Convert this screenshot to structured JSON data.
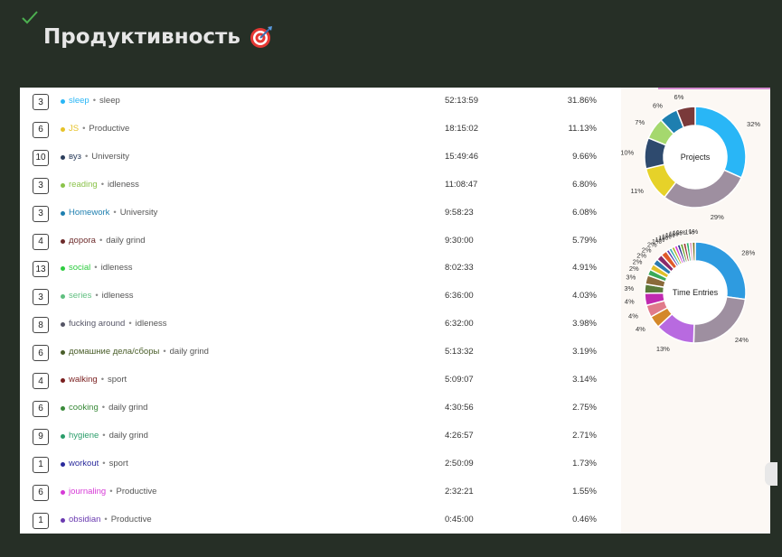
{
  "page": {
    "title": "Продуктивность",
    "title_icon": "dart-target-icon"
  },
  "colors": {
    "background": "#262f26",
    "check": "#4caf50"
  },
  "rows": [
    {
      "count": "3",
      "project": "sleep",
      "client": "sleep",
      "duration": "52:13:59",
      "percent": "31.86%",
      "color": "#29b6f6"
    },
    {
      "count": "6",
      "project": "JS",
      "client": "Productive",
      "duration": "18:15:02",
      "percent": "11.13%",
      "color": "#e6c229"
    },
    {
      "count": "10",
      "project": "вуз",
      "client": "University",
      "duration": "15:49:46",
      "percent": "9.66%",
      "color": "#2b3e5c"
    },
    {
      "count": "3",
      "project": "reading",
      "client": "idleness",
      "duration": "11:08:47",
      "percent": "6.80%",
      "color": "#8bc34a"
    },
    {
      "count": "3",
      "project": "Homework",
      "client": "University",
      "duration": "9:58:23",
      "percent": "6.08%",
      "color": "#1e7fb0"
    },
    {
      "count": "4",
      "project": "дорога",
      "client": "daily grind",
      "duration": "9:30:00",
      "percent": "5.79%",
      "color": "#6d2b2b"
    },
    {
      "count": "13",
      "project": "social",
      "client": "idleness",
      "duration": "8:02:33",
      "percent": "4.91%",
      "color": "#2ecc40"
    },
    {
      "count": "3",
      "project": "series",
      "client": "idleness",
      "duration": "6:36:00",
      "percent": "4.03%",
      "color": "#5fbf7f"
    },
    {
      "count": "8",
      "project": "fucking around",
      "client": "idleness",
      "duration": "6:32:00",
      "percent": "3.98%",
      "color": "#555566"
    },
    {
      "count": "6",
      "project": "домашние дела/сборы",
      "client": "daily grind",
      "duration": "5:13:32",
      "percent": "3.19%",
      "color": "#4a5e2a"
    },
    {
      "count": "4",
      "project": "walking",
      "client": "sport",
      "duration": "5:09:07",
      "percent": "3.14%",
      "color": "#7a1f1f"
    },
    {
      "count": "6",
      "project": "cooking",
      "client": "daily grind",
      "duration": "4:30:56",
      "percent": "2.75%",
      "color": "#3a8a3a"
    },
    {
      "count": "9",
      "project": "hygiene",
      "client": "daily grind",
      "duration": "4:26:57",
      "percent": "2.71%",
      "color": "#2a9d6a"
    },
    {
      "count": "1",
      "project": "workout",
      "client": "sport",
      "duration": "2:50:09",
      "percent": "1.73%",
      "color": "#2a2a9d"
    },
    {
      "count": "6",
      "project": "journaling",
      "client": "Productive",
      "duration": "2:32:21",
      "percent": "1.55%",
      "color": "#d63ad6"
    },
    {
      "count": "1",
      "project": "obsidian",
      "client": "Productive",
      "duration": "0:45:00",
      "percent": "0.46%",
      "color": "#6a3ab0"
    }
  ],
  "chart_data": [
    {
      "type": "pie",
      "title": "Projects",
      "slices": [
        {
          "value": 32,
          "label": "32%",
          "color": "#29b6f6"
        },
        {
          "value": 29,
          "label": "29%",
          "color": "#9e8fa0"
        },
        {
          "value": 11,
          "label": "11%",
          "color": "#e6d229"
        },
        {
          "value": 10,
          "label": "10%",
          "color": "#2e4a6e"
        },
        {
          "value": 7,
          "label": "7%",
          "color": "#a5d86e"
        },
        {
          "value": 6,
          "label": "6%",
          "color": "#1e7fb0"
        },
        {
          "value": 6,
          "label": "6%",
          "color": "#7a3a3a"
        }
      ]
    },
    {
      "type": "pie",
      "title": "Time Entries",
      "slices": [
        {
          "value": 28,
          "label": "28%",
          "color": "#2e9be0"
        },
        {
          "value": 24,
          "label": "24%",
          "color": "#9e8fa0"
        },
        {
          "value": 13,
          "label": "13%",
          "color": "#b86ae0"
        },
        {
          "value": 4,
          "label": "4%",
          "color": "#d4882a"
        },
        {
          "value": 4,
          "label": "4%",
          "color": "#e07a8a"
        },
        {
          "value": 4,
          "label": "4%",
          "color": "#c02ab0"
        },
        {
          "value": 3,
          "label": "3%",
          "color": "#5a7a3a"
        },
        {
          "value": 3,
          "label": "3%",
          "color": "#8a6a3a"
        },
        {
          "value": 2,
          "label": "2%",
          "color": "#3aaa5a"
        },
        {
          "value": 2,
          "label": "2%",
          "color": "#e0c02a"
        },
        {
          "value": 2,
          "label": "2%",
          "color": "#2a7ab0"
        },
        {
          "value": 2,
          "label": "2%",
          "color": "#8a2a6a"
        },
        {
          "value": 2,
          "label": "2%",
          "color": "#e05a2a"
        },
        {
          "value": 1,
          "label": "1%",
          "color": "#5a3ab0"
        },
        {
          "value": 1,
          "label": "1%",
          "color": "#3ab0b0"
        },
        {
          "value": 1,
          "label": "1%",
          "color": "#b0b02a"
        },
        {
          "value": 1,
          "label": "1%",
          "color": "#d63ad6"
        },
        {
          "value": 1,
          "label": "1%",
          "color": "#2a3a8a"
        },
        {
          "value": 1,
          "label": "1%",
          "color": "#6aa02a"
        },
        {
          "value": 1,
          "label": "1%",
          "color": "#a03a3a"
        },
        {
          "value": 1,
          "label": "1%",
          "color": "#2ab06a"
        },
        {
          "value": 1,
          "label": "1%",
          "color": "#e0a0c0"
        },
        {
          "value": 1,
          "label": "1%",
          "color": "#7a7a2a"
        }
      ]
    }
  ]
}
